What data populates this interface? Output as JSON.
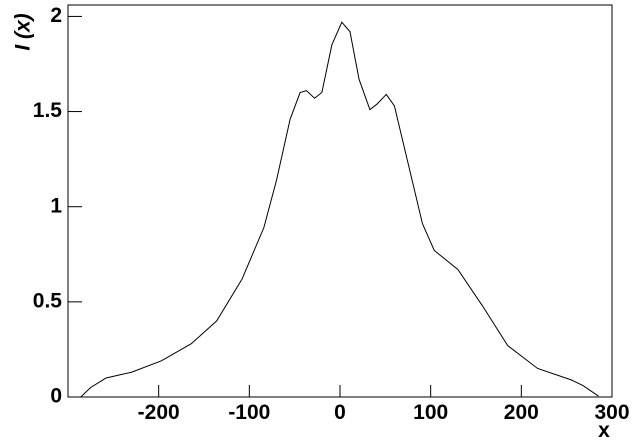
{
  "chart_data": {
    "type": "line",
    "x_label": "x",
    "y_label": "I (x)",
    "x": [
      -286,
      -275,
      -258,
      -230,
      -197,
      -164,
      -136,
      -108,
      -84,
      -70,
      -55,
      -44,
      -37,
      -28,
      -20,
      -9,
      2,
      11,
      21,
      33,
      41,
      51,
      60,
      74,
      91,
      104,
      130,
      157,
      185,
      218,
      255,
      268,
      285
    ],
    "series": [
      {
        "color": "#000000",
        "values": [
          0,
          0.05,
          0.1,
          0.13,
          0.19,
          0.28,
          0.4,
          0.62,
          0.89,
          1.14,
          1.46,
          1.6,
          1.61,
          1.57,
          1.6,
          1.85,
          1.97,
          1.92,
          1.67,
          1.51,
          1.54,
          1.59,
          1.53,
          1.25,
          0.91,
          0.77,
          0.67,
          0.48,
          0.27,
          0.15,
          0.09,
          0.06,
          0.005
        ]
      }
    ],
    "xlim": [
      -300,
      300
    ],
    "xticks": [
      -200,
      -100,
      0,
      100,
      200,
      300
    ],
    "ylim": [
      0,
      2.06
    ],
    "yticks": [
      0,
      0.5,
      1,
      1.5,
      2
    ]
  }
}
